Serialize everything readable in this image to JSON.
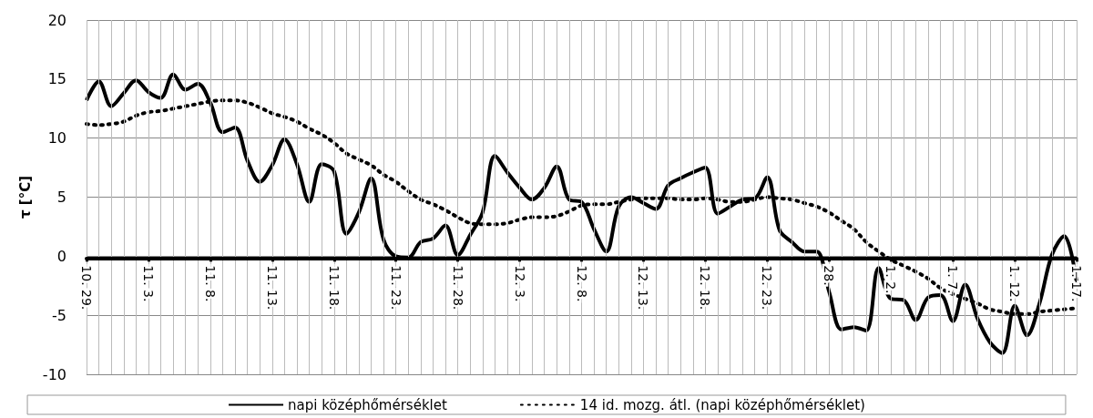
{
  "chart_data": {
    "type": "line",
    "ylabel": "τ [°C]",
    "categories": [
      "10. 29.",
      null,
      null,
      null,
      null,
      "11. 3.",
      null,
      null,
      null,
      null,
      "11. 8.",
      null,
      null,
      null,
      null,
      "11. 13.",
      null,
      null,
      null,
      null,
      "11. 18.",
      null,
      null,
      null,
      null,
      "11. 23.",
      null,
      null,
      null,
      null,
      "11. 28.",
      null,
      null,
      null,
      null,
      "12. 3.",
      null,
      null,
      null,
      null,
      "12. 8.",
      null,
      null,
      null,
      null,
      "12. 13.",
      null,
      null,
      null,
      null,
      "12. 18.",
      null,
      null,
      null,
      null,
      "12. 23.",
      null,
      null,
      null,
      null,
      "28.",
      null,
      null,
      null,
      null,
      "1. 2.",
      null,
      null,
      null,
      null,
      "1. 7.",
      null,
      null,
      null,
      null,
      "1. 12.",
      null,
      null,
      null,
      null,
      "1. 17."
    ],
    "series": [
      {
        "name": "napi középhőmérséklet",
        "color": "#000000",
        "line_style": "solid",
        "values": [
          13.2,
          14.8,
          12.7,
          13.8,
          14.9,
          13.9,
          13.4,
          15.4,
          14.1,
          14.6,
          13.0,
          10.5,
          10.9,
          8.1,
          6.3,
          7.7,
          9.9,
          7.8,
          4.6,
          7.8,
          7.2,
          1.9,
          3.7,
          6.6,
          1.4,
          0,
          -0.1,
          1.2,
          1.5,
          2.6,
          0.1,
          1.8,
          3.7,
          8.5,
          7.1,
          5.8,
          4.8,
          5.8,
          7.6,
          4.8,
          4.6,
          2.3,
          0.4,
          4.2,
          5.0,
          4.5,
          4.0,
          6.0,
          6.6,
          7.1,
          7.5,
          3.6,
          4.2,
          4.8,
          4.9,
          6.7,
          2.2,
          1.2,
          0.4,
          0.4,
          -3.0,
          -6.2,
          -6.0,
          -6.3,
          -1.0,
          -3.6,
          -3.7,
          -5.4,
          -3.5,
          -3.3,
          -5.5,
          -2.4,
          -5.3,
          -7.3,
          -8.2,
          -4.2,
          -6.7,
          -4.0,
          0.1,
          1.7,
          -2.2
        ]
      },
      {
        "name": "14 id. mozg. átl. (napi középhőmérséklet)",
        "color": "#000000",
        "line_style": "dotted",
        "values": [
          11.2,
          11.1,
          11.2,
          11.4,
          11.9,
          12.2,
          12.3,
          12.5,
          12.7,
          12.9,
          13.1,
          13.2,
          13.2,
          13.0,
          12.6,
          12.1,
          11.8,
          11.4,
          10.8,
          10.3,
          9.6,
          8.7,
          8.2,
          7.7,
          6.9,
          6.3,
          5.5,
          4.8,
          4.4,
          3.9,
          3.3,
          2.8,
          2.7,
          2.7,
          2.8,
          3.1,
          3.3,
          3.3,
          3.4,
          3.8,
          4.3,
          4.4,
          4.4,
          4.6,
          4.8,
          4.9,
          4.9,
          4.9,
          4.8,
          4.8,
          4.9,
          4.8,
          4.6,
          4.6,
          4.8,
          5.0,
          4.9,
          4.8,
          4.5,
          4.2,
          3.7,
          3.0,
          2.3,
          1.2,
          0.4,
          -0.3,
          -0.8,
          -1.3,
          -1.9,
          -2.7,
          -3.2,
          -3.6,
          -4.0,
          -4.5,
          -4.7,
          -4.9,
          -4.9,
          -4.7,
          -4.6,
          -4.5,
          -4.4
        ]
      }
    ],
    "ylim": [
      -10,
      20
    ],
    "yticks": [
      -10,
      -5,
      0,
      5,
      10,
      15,
      20
    ],
    "grid": true,
    "legend": "bottom",
    "marker": "none"
  }
}
